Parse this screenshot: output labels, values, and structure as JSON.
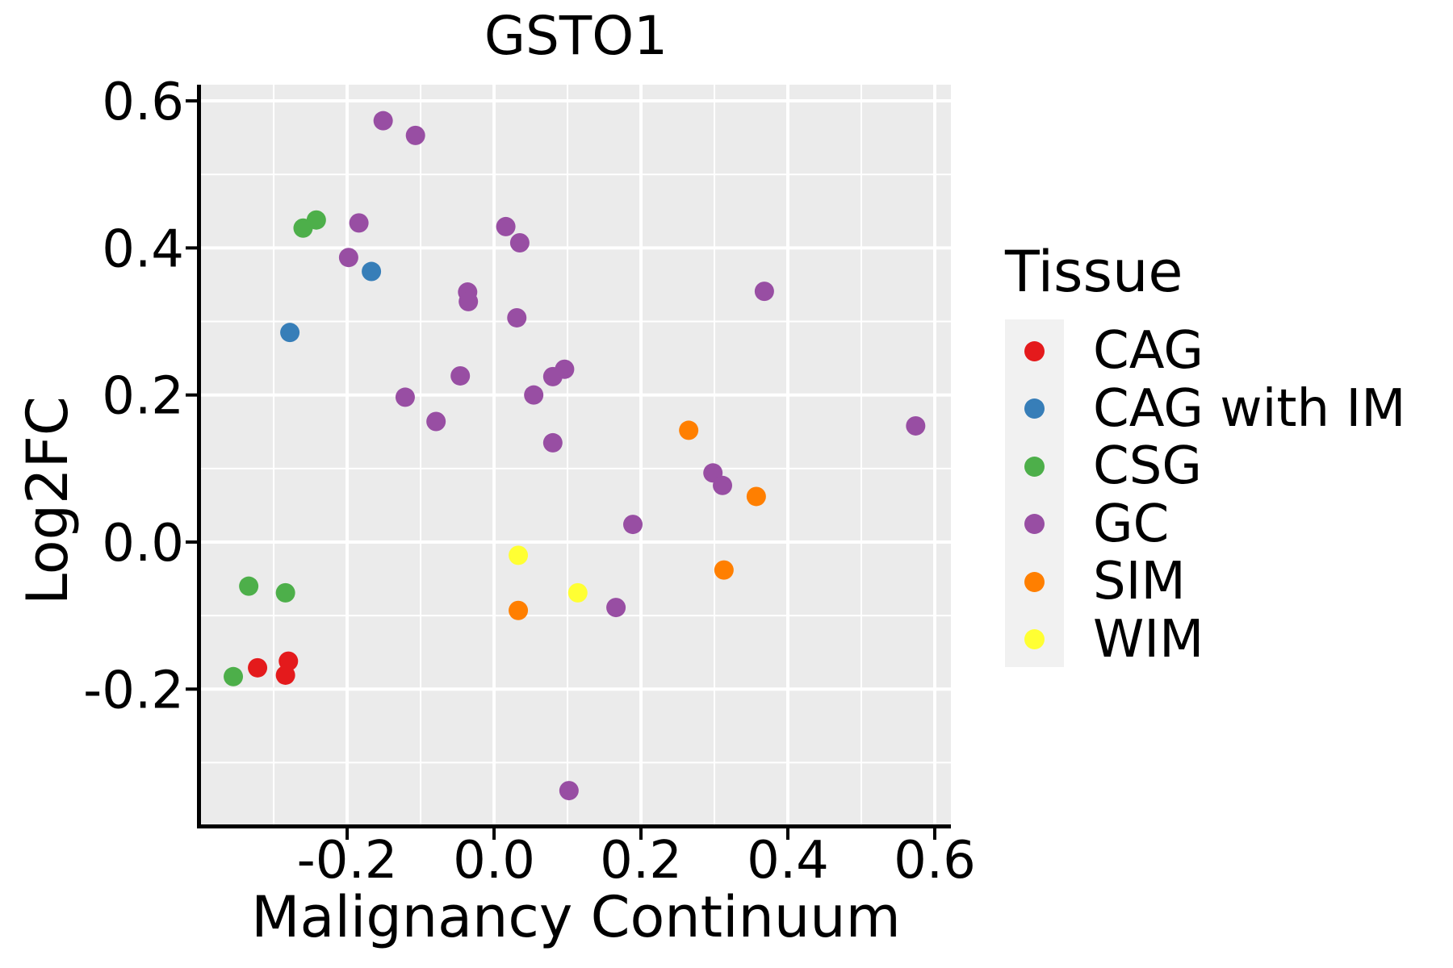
{
  "chart_data": {
    "type": "scatter",
    "title": "GSTO1",
    "xlabel": "Malignancy Continuum",
    "ylabel": "Log2FC",
    "xlim": [
      -0.399,
      0.622
    ],
    "ylim": [
      -0.384,
      0.622
    ],
    "grid": {
      "major_color": "#ffffff",
      "minor_color": "#ffffff",
      "panel_background": "#ebebeb"
    },
    "axis_color": "#000000",
    "x_ticks": {
      "values": [
        -0.2,
        0.0,
        0.2,
        0.4,
        0.6
      ],
      "labels": [
        "-0.2",
        "0.0",
        "0.2",
        "0.4",
        "0.6"
      ]
    },
    "y_ticks": {
      "values": [
        0.6,
        0.4,
        0.2,
        0.0,
        -0.2
      ],
      "labels": [
        "0.6",
        "0.4",
        "0.2",
        "0.0",
        "-0.2"
      ]
    },
    "x_minor_ticks": [
      -0.3,
      -0.1,
      0.1,
      0.3,
      0.5
    ],
    "y_minor_ticks": [
      -0.3,
      -0.1,
      0.1,
      0.3,
      0.5
    ],
    "point_radius_px": 12,
    "legend": {
      "title": "Tissue",
      "position": "right",
      "key_background": "#f1f1f1"
    },
    "series": [
      {
        "name": "CAG",
        "color": "#e41a1c",
        "points": [
          [
            -0.322,
            -0.171
          ],
          [
            -0.28,
            -0.162
          ],
          [
            -0.284,
            -0.181
          ]
        ]
      },
      {
        "name": "CAG with IM",
        "color": "#377eb8",
        "points": [
          [
            -0.167,
            0.368
          ],
          [
            -0.278,
            0.285
          ]
        ]
      },
      {
        "name": "CSG",
        "color": "#4daf4a",
        "points": [
          [
            -0.242,
            0.438
          ],
          [
            -0.26,
            0.427
          ],
          [
            -0.334,
            -0.06
          ],
          [
            -0.284,
            -0.069
          ],
          [
            -0.355,
            -0.183
          ]
        ]
      },
      {
        "name": "GC",
        "color": "#984ea3",
        "points": [
          [
            -0.151,
            0.573
          ],
          [
            -0.107,
            0.553
          ],
          [
            -0.184,
            0.434
          ],
          [
            0.016,
            0.429
          ],
          [
            0.035,
            0.407
          ],
          [
            -0.198,
            0.387
          ],
          [
            -0.036,
            0.34
          ],
          [
            -0.035,
            0.327
          ],
          [
            0.031,
            0.305
          ],
          [
            0.368,
            0.341
          ],
          [
            -0.046,
            0.226
          ],
          [
            -0.121,
            0.197
          ],
          [
            0.08,
            0.225
          ],
          [
            0.096,
            0.235
          ],
          [
            0.054,
            0.2
          ],
          [
            -0.079,
            0.164
          ],
          [
            0.08,
            0.135
          ],
          [
            0.574,
            0.158
          ],
          [
            0.298,
            0.094
          ],
          [
            0.311,
            0.077
          ],
          [
            0.189,
            0.024
          ],
          [
            0.166,
            -0.089
          ],
          [
            0.102,
            -0.338
          ]
        ]
      },
      {
        "name": "SIM",
        "color": "#ff7f00",
        "points": [
          [
            0.265,
            0.152
          ],
          [
            0.357,
            0.062
          ],
          [
            0.313,
            -0.038
          ],
          [
            0.033,
            -0.093
          ]
        ]
      },
      {
        "name": "WIM",
        "color": "#ffff33",
        "points": [
          [
            0.033,
            -0.018
          ],
          [
            0.114,
            -0.069
          ]
        ]
      }
    ]
  }
}
